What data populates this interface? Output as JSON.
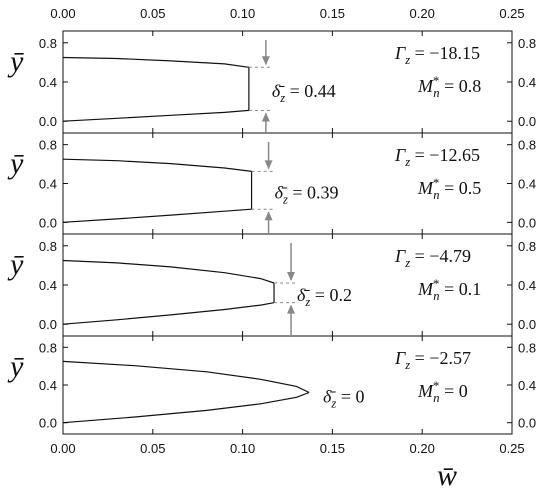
{
  "chart_data": {
    "type": "line",
    "xlabel": "w̄",
    "ylabel": "ȳ",
    "xlim": [
      0,
      0.25
    ],
    "ylim": [
      -0.12,
      0.92
    ],
    "x_ticks": [
      "0.00",
      "0.05",
      "0.10",
      "0.15",
      "0.20",
      "0.25"
    ],
    "y_ticks": [
      "0.0",
      "0.4",
      "0.8"
    ],
    "grid": false,
    "panels": [
      {
        "gamma_label": "Γz = −18.15",
        "m_label": "M*n = 0.8",
        "delta_label": "δ̄z = 0.44",
        "tip_x": 0.1035,
        "gap": [
          0.11,
          0.55
        ],
        "top_curve": [
          [
            0.0,
            0.65
          ],
          [
            0.03,
            0.64
          ],
          [
            0.06,
            0.615
          ],
          [
            0.09,
            0.585
          ],
          [
            0.1035,
            0.55
          ]
        ],
        "bottom_curve": [
          [
            0.0,
            0.0
          ],
          [
            0.03,
            0.03
          ],
          [
            0.06,
            0.06
          ],
          [
            0.09,
            0.09
          ],
          [
            0.1035,
            0.11
          ]
        ]
      },
      {
        "gamma_label": "Γz = −12.65",
        "m_label": "M*n = 0.5",
        "delta_label": "δ̄z = 0.39",
        "tip_x": 0.105,
        "gap": [
          0.135,
          0.525
        ],
        "top_curve": [
          [
            0.0,
            0.65
          ],
          [
            0.03,
            0.635
          ],
          [
            0.06,
            0.605
          ],
          [
            0.09,
            0.56
          ],
          [
            0.105,
            0.525
          ]
        ],
        "bottom_curve": [
          [
            0.0,
            0.0
          ],
          [
            0.03,
            0.035
          ],
          [
            0.06,
            0.075
          ],
          [
            0.09,
            0.115
          ],
          [
            0.105,
            0.135
          ]
        ]
      },
      {
        "gamma_label": "Γz = −4.79",
        "m_label": "M*n = 0.1",
        "delta_label": "δ̄z = 0.2",
        "tip_x": 0.1175,
        "gap": [
          0.22,
          0.42
        ],
        "top_curve": [
          [
            0.0,
            0.65
          ],
          [
            0.03,
            0.625
          ],
          [
            0.06,
            0.585
          ],
          [
            0.09,
            0.525
          ],
          [
            0.11,
            0.465
          ],
          [
            0.1175,
            0.42
          ]
        ],
        "bottom_curve": [
          [
            0.0,
            0.0
          ],
          [
            0.03,
            0.045
          ],
          [
            0.06,
            0.095
          ],
          [
            0.09,
            0.15
          ],
          [
            0.11,
            0.195
          ],
          [
            0.1175,
            0.22
          ]
        ]
      },
      {
        "gamma_label": "Γz = −2.57",
        "m_label": "M*n = 0",
        "delta_label": "δ̄z = 0",
        "tip_x": 0.137,
        "gap": [
          0.32,
          0.32
        ],
        "top_curve": [
          [
            0.0,
            0.65
          ],
          [
            0.04,
            0.605
          ],
          [
            0.08,
            0.54
          ],
          [
            0.11,
            0.46
          ],
          [
            0.13,
            0.385
          ],
          [
            0.137,
            0.32
          ]
        ],
        "bottom_curve": [
          [
            0.0,
            0.0
          ],
          [
            0.04,
            0.06
          ],
          [
            0.08,
            0.13
          ],
          [
            0.11,
            0.2
          ],
          [
            0.13,
            0.27
          ],
          [
            0.137,
            0.32
          ]
        ]
      }
    ]
  },
  "colors": {
    "axis": "#111111",
    "curve": "#111111",
    "annotation": "#888888"
  }
}
